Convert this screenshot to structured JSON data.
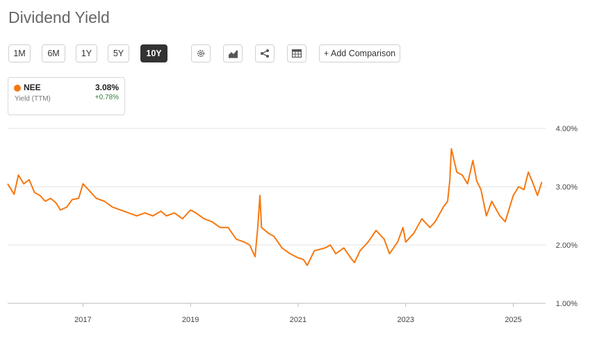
{
  "title": "Dividend Yield",
  "range_buttons": [
    "1M",
    "6M",
    "1Y",
    "5Y",
    "10Y"
  ],
  "active_range": "10Y",
  "icons": [
    "gear-icon",
    "area-chart-icon",
    "share-icon",
    "table-icon"
  ],
  "add_comparison_label": "+ Add Comparison",
  "legend": {
    "ticker": "NEE",
    "subtitle": "Yield (TTM)",
    "value": "3.08%",
    "change": "+0.78%",
    "color": "#f7770f",
    "change_color": "#2e7d32"
  },
  "chart_data": {
    "type": "line",
    "x_unit": "year",
    "xlim": [
      2015.6,
      2025.6
    ],
    "ylim": [
      1.0,
      4.0
    ],
    "x_ticks": [
      2017,
      2019,
      2021,
      2023,
      2025
    ],
    "x_tick_labels": [
      "2017",
      "2019",
      "2021",
      "2023",
      "2025"
    ],
    "y_ticks": [
      1.0,
      2.0,
      3.0,
      4.0
    ],
    "y_tick_labels": [
      "1.00%",
      "2.00%",
      "3.00%",
      "4.00%"
    ],
    "grid": true,
    "series": [
      {
        "name": "NEE",
        "color": "#f7770f",
        "points": [
          [
            2015.6,
            3.05
          ],
          [
            2015.72,
            2.87
          ],
          [
            2015.8,
            3.2
          ],
          [
            2015.9,
            3.05
          ],
          [
            2016.0,
            3.12
          ],
          [
            2016.1,
            2.9
          ],
          [
            2016.2,
            2.85
          ],
          [
            2016.3,
            2.75
          ],
          [
            2016.4,
            2.8
          ],
          [
            2016.5,
            2.72
          ],
          [
            2016.58,
            2.6
          ],
          [
            2016.7,
            2.65
          ],
          [
            2016.8,
            2.78
          ],
          [
            2016.92,
            2.8
          ],
          [
            2017.0,
            3.05
          ],
          [
            2017.1,
            2.95
          ],
          [
            2017.25,
            2.8
          ],
          [
            2017.4,
            2.75
          ],
          [
            2017.55,
            2.65
          ],
          [
            2017.7,
            2.6
          ],
          [
            2017.85,
            2.55
          ],
          [
            2018.0,
            2.5
          ],
          [
            2018.15,
            2.55
          ],
          [
            2018.3,
            2.5
          ],
          [
            2018.45,
            2.58
          ],
          [
            2018.55,
            2.5
          ],
          [
            2018.7,
            2.55
          ],
          [
            2018.85,
            2.45
          ],
          [
            2019.0,
            2.6
          ],
          [
            2019.1,
            2.55
          ],
          [
            2019.25,
            2.45
          ],
          [
            2019.4,
            2.4
          ],
          [
            2019.55,
            2.3
          ],
          [
            2019.7,
            2.3
          ],
          [
            2019.85,
            2.1
          ],
          [
            2020.0,
            2.05
          ],
          [
            2020.1,
            2.0
          ],
          [
            2020.2,
            1.8
          ],
          [
            2020.25,
            2.3
          ],
          [
            2020.29,
            2.85
          ],
          [
            2020.32,
            2.3
          ],
          [
            2020.45,
            2.2
          ],
          [
            2020.55,
            2.15
          ],
          [
            2020.7,
            1.95
          ],
          [
            2020.85,
            1.85
          ],
          [
            2021.0,
            1.78
          ],
          [
            2021.1,
            1.75
          ],
          [
            2021.17,
            1.65
          ],
          [
            2021.3,
            1.9
          ],
          [
            2021.5,
            1.95
          ],
          [
            2021.6,
            2.0
          ],
          [
            2021.7,
            1.85
          ],
          [
            2021.85,
            1.95
          ],
          [
            2022.0,
            1.75
          ],
          [
            2022.05,
            1.7
          ],
          [
            2022.15,
            1.9
          ],
          [
            2022.3,
            2.05
          ],
          [
            2022.45,
            2.25
          ],
          [
            2022.6,
            2.1
          ],
          [
            2022.7,
            1.85
          ],
          [
            2022.85,
            2.05
          ],
          [
            2022.95,
            2.3
          ],
          [
            2023.0,
            2.05
          ],
          [
            2023.15,
            2.2
          ],
          [
            2023.3,
            2.45
          ],
          [
            2023.45,
            2.3
          ],
          [
            2023.55,
            2.4
          ],
          [
            2023.7,
            2.65
          ],
          [
            2023.78,
            2.75
          ],
          [
            2023.82,
            3.1
          ],
          [
            2023.85,
            3.65
          ],
          [
            2023.95,
            3.25
          ],
          [
            2024.05,
            3.2
          ],
          [
            2024.15,
            3.05
          ],
          [
            2024.25,
            3.45
          ],
          [
            2024.32,
            3.1
          ],
          [
            2024.4,
            2.95
          ],
          [
            2024.5,
            2.5
          ],
          [
            2024.6,
            2.75
          ],
          [
            2024.75,
            2.5
          ],
          [
            2024.85,
            2.4
          ],
          [
            2024.95,
            2.7
          ],
          [
            2025.0,
            2.85
          ],
          [
            2025.1,
            3.0
          ],
          [
            2025.2,
            2.95
          ],
          [
            2025.28,
            3.25
          ],
          [
            2025.35,
            3.1
          ],
          [
            2025.45,
            2.85
          ],
          [
            2025.53,
            3.08
          ]
        ]
      }
    ]
  }
}
